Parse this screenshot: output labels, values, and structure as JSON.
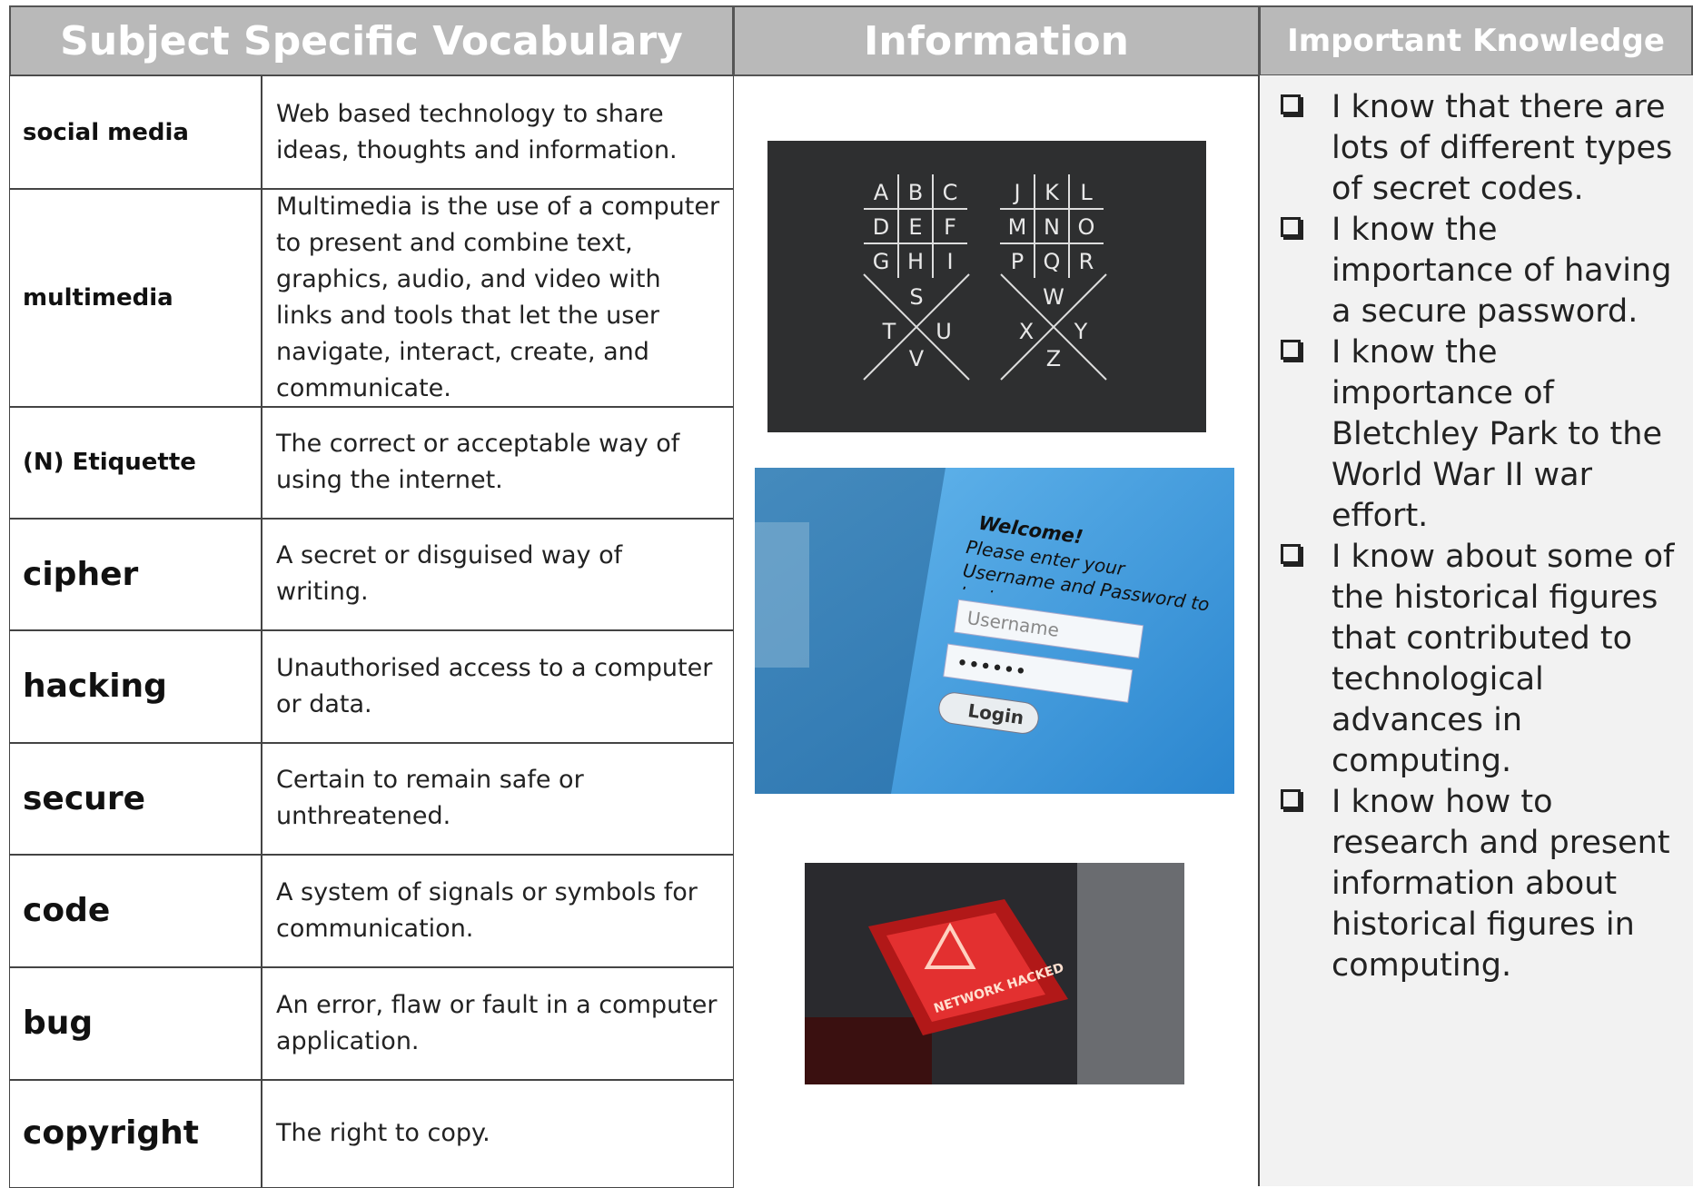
{
  "header": {
    "vocabulary": "Subject Specific Vocabulary",
    "information": "Information",
    "knowledge": "Important Knowledge"
  },
  "vocabulary": [
    {
      "term": "social media",
      "definition": "Web based technology to share ideas, thoughts and information."
    },
    {
      "term": "multimedia",
      "definition": "Multimedia is the use of a computer to present and combine text, graphics, audio, and video with links and tools that let the user navigate, interact, create, and communicate."
    },
    {
      "term": "(N) Etiquette",
      "definition": "The correct or acceptable way of using the internet."
    },
    {
      "term": "cipher",
      "definition": "A secret or disguised way of writing."
    },
    {
      "term": "hacking",
      "definition": "Unauthorised access to a computer or data."
    },
    {
      "term": "secure",
      "definition": "Certain to remain safe or unthreatened."
    },
    {
      "term": "code",
      "definition": "A system of signals or symbols for communication."
    },
    {
      "term": "bug",
      "definition": "An error, flaw or fault in a computer application."
    },
    {
      "term": "copyright",
      "definition": "The right to copy."
    }
  ],
  "images": {
    "pigpen": [
      [
        "A",
        "B",
        "C",
        "D",
        "E",
        "F",
        "G",
        "H",
        "I"
      ],
      [
        "J",
        "K",
        "L",
        "M",
        "N",
        "O",
        "P",
        "Q",
        "R"
      ],
      [
        "S",
        "T",
        "U",
        "V"
      ],
      [
        "W",
        "X",
        "Y",
        "Z"
      ]
    ],
    "login": {
      "welcome": "Welcome!",
      "prompt": "Please enter your Username and Password to login.",
      "username": "Username",
      "password": "••••••",
      "button": "Login"
    },
    "hacked": {
      "warning": "NETWORK HACKED"
    }
  },
  "knowledge": [
    "I know that there are lots of different types of secret codes.",
    "I know the importance of having a secure password.",
    "I know the importance of Bletchley Park to the World War II war effort.",
    "I know about some of the historical figures that contributed to technological advances in computing.",
    "I know how to research and present information about historical figures in computing."
  ]
}
